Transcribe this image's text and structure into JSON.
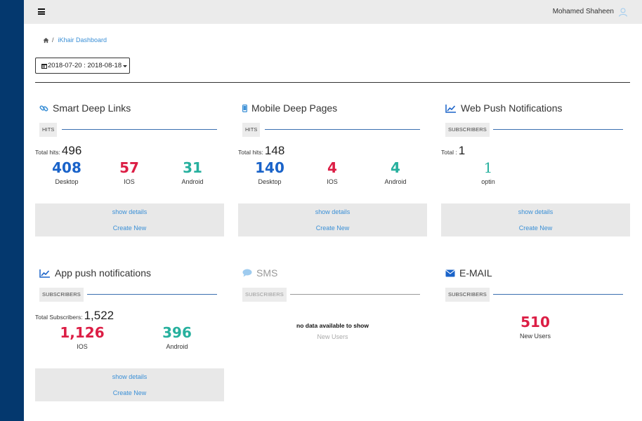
{
  "user": {
    "name": "Mohamed Shaheen"
  },
  "breadcrumb": {
    "separator": "/",
    "current": "iKhair Dashboard"
  },
  "date_range": {
    "label": "2018-07-20 : 2018-08-18"
  },
  "colors": {
    "sidebar": "#04386e",
    "blue": "#1a63c9",
    "red": "#dc1e45",
    "teal": "#27b09e",
    "link": "#3a8fd6"
  },
  "cards": {
    "smart_links": {
      "title": "Smart Deep Links",
      "icon": "link-icon",
      "section": "HITS",
      "total_label": "Total hits:",
      "total_value": "496",
      "stats": [
        {
          "value": "408",
          "label": "Desktop"
        },
        {
          "value": "57",
          "label": "IOS"
        },
        {
          "value": "31",
          "label": "Android"
        }
      ],
      "show_details": "show details",
      "create_new": "Create New"
    },
    "mobile_pages": {
      "title": "Mobile Deep Pages",
      "icon": "mobile-icon",
      "section": "HITS",
      "total_label": "Total hits:",
      "total_value": "148",
      "stats": [
        {
          "value": "140",
          "label": "Desktop"
        },
        {
          "value": "4",
          "label": "IOS"
        },
        {
          "value": "4",
          "label": "Android"
        }
      ],
      "show_details": "show details",
      "create_new": "Create New"
    },
    "web_push": {
      "title": "Web Push Notifications",
      "icon": "line-chart-icon",
      "section": "SUBSCRIBERS",
      "total_label": "Total :",
      "total_value": "1",
      "stats": [
        {
          "value": "1",
          "label": "optin"
        }
      ],
      "show_details": "show details",
      "create_new": "Create New"
    },
    "app_push": {
      "title": "App push notifications",
      "icon": "line-chart-icon",
      "section": "SUBSCRIBERS",
      "total_label": "Total Subscribers:",
      "total_value": "1,522",
      "stats": [
        {
          "value": "1,126",
          "label": "IOS"
        },
        {
          "value": "396",
          "label": "Android"
        }
      ],
      "show_details": "show details",
      "create_new": "Create New"
    },
    "sms": {
      "title": "SMS",
      "icon": "comment-icon",
      "section": "SUBSCRIBERS",
      "no_data": "no data available to show",
      "sub_label": "New Users"
    },
    "email": {
      "title": "E-MAIL",
      "icon": "envelope-icon",
      "section": "SUBSCRIBERS",
      "stats": [
        {
          "value": "510",
          "label": "New Users"
        }
      ]
    }
  }
}
